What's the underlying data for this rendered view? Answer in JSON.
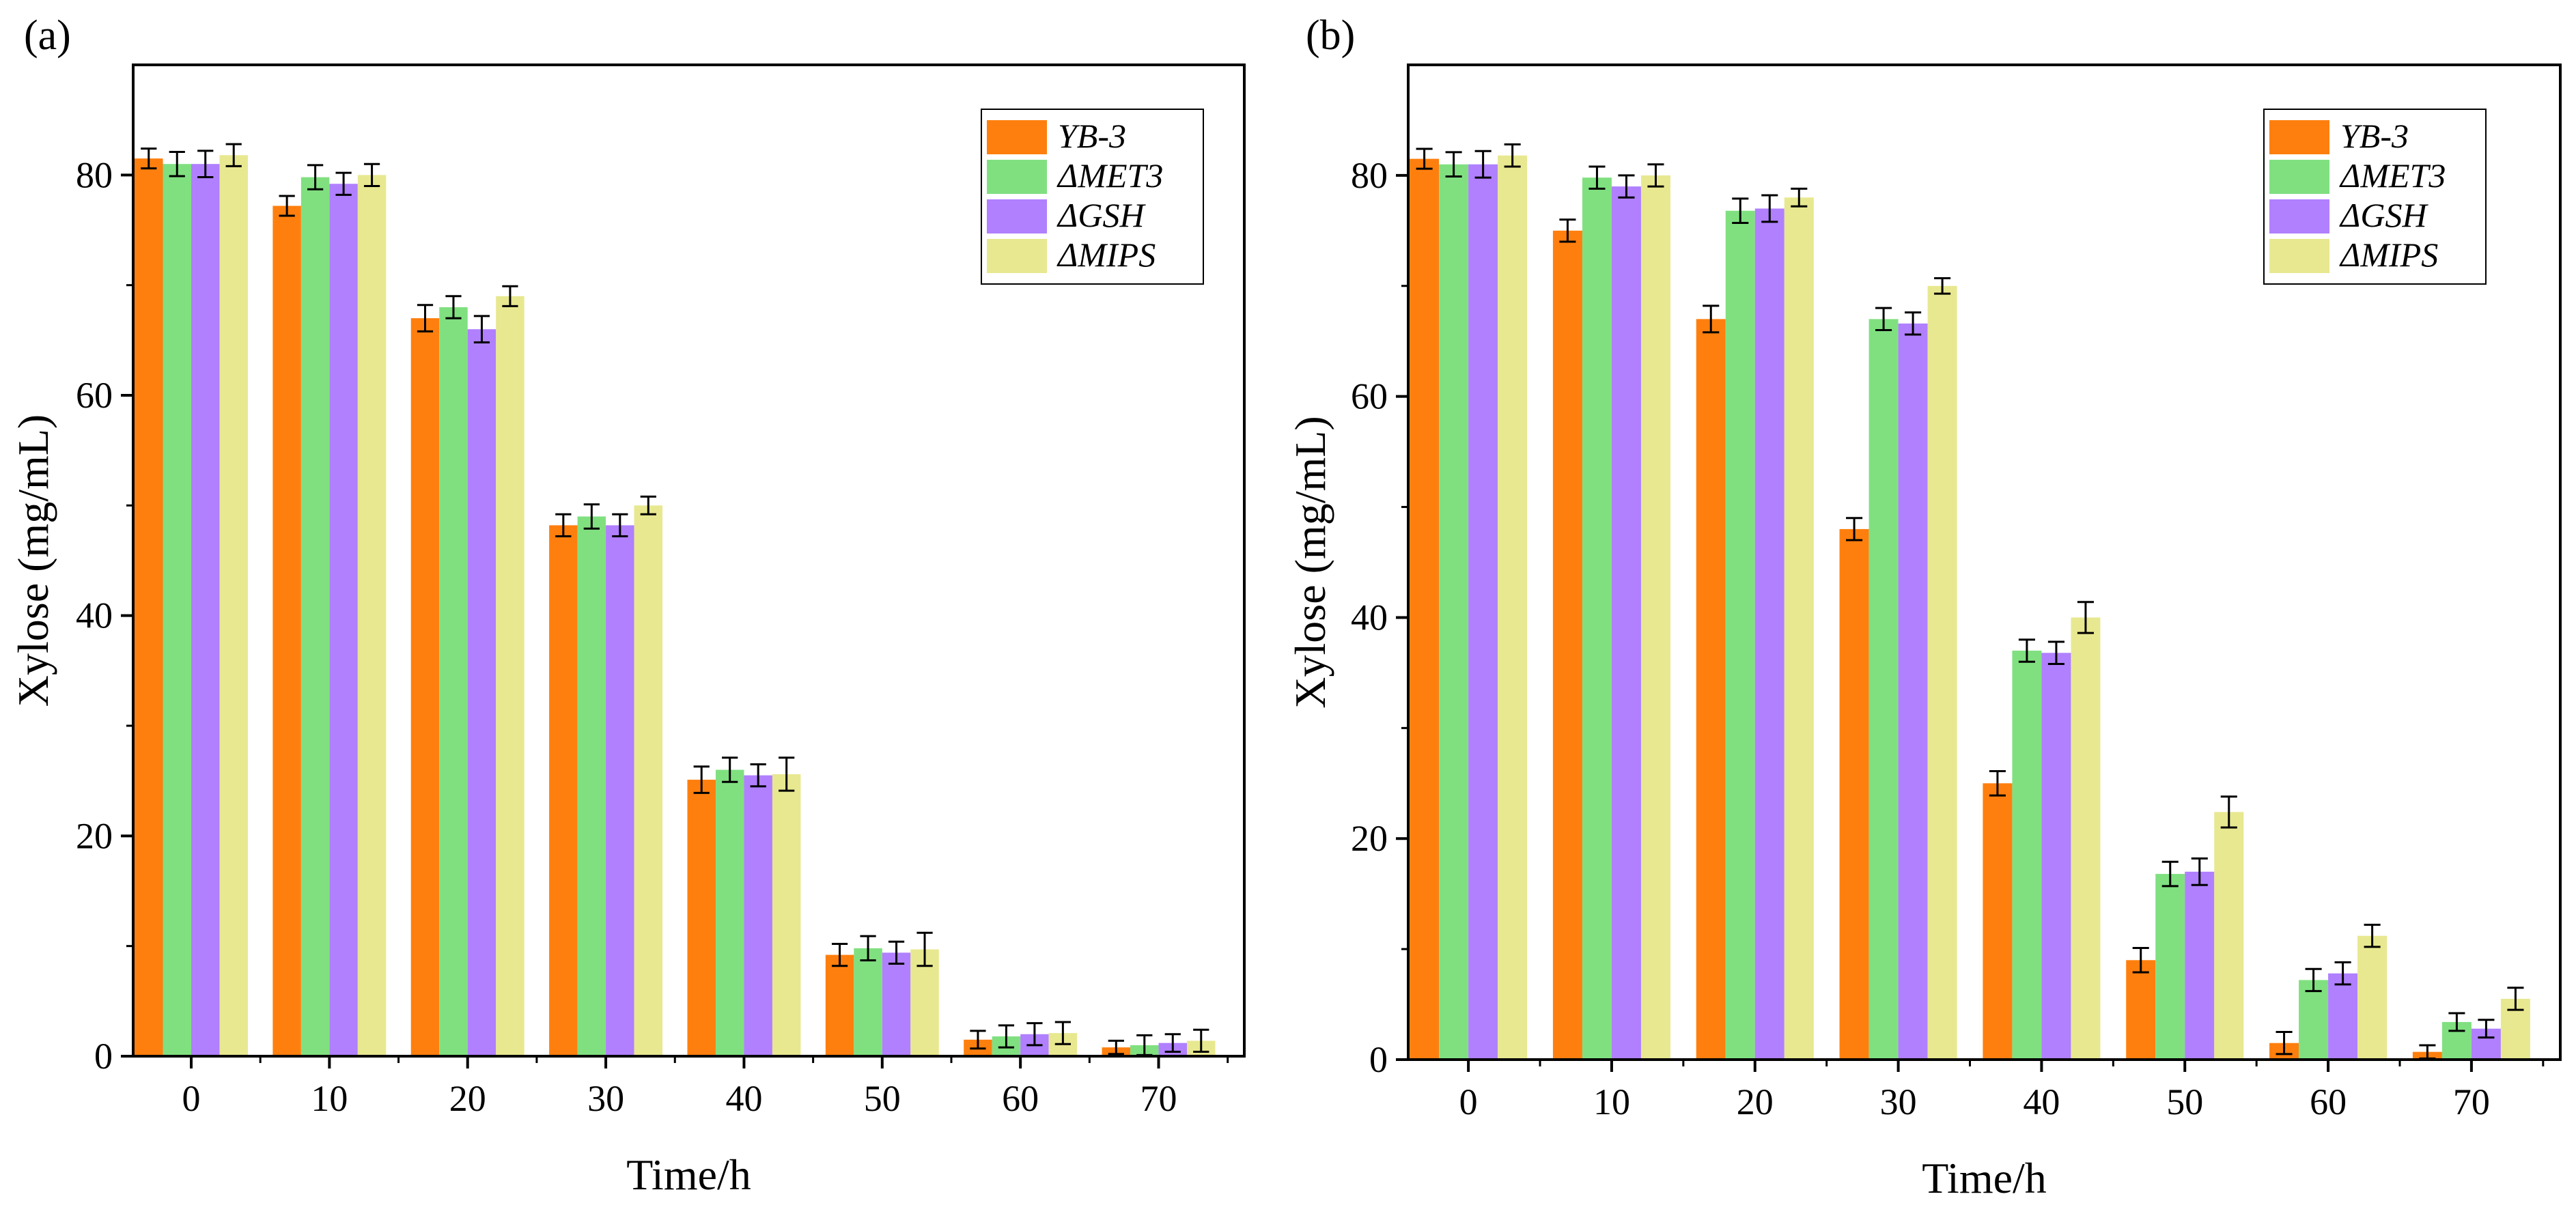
{
  "chart_data": [
    {
      "type": "bar",
      "panel_label": "(a)",
      "xlabel": "Time/h",
      "ylabel": "Xylose (mg/mL)",
      "x": [
        0,
        10,
        20,
        30,
        40,
        50,
        60,
        70
      ],
      "yticks": [
        0,
        20,
        40,
        60,
        80
      ],
      "ylim": [
        0,
        90
      ],
      "legend_position": "top-right",
      "series": [
        {
          "name": "YB-3",
          "color": "#ff7f0e",
          "values": [
            81.5,
            77.2,
            67.0,
            48.2,
            25.1,
            9.2,
            1.5,
            0.8
          ],
          "errors": [
            0.9,
            0.9,
            1.2,
            1.0,
            1.2,
            1.0,
            0.8,
            0.6
          ]
        },
        {
          "name": "ΔMET3",
          "color": "#80e080",
          "values": [
            81.0,
            79.8,
            68.0,
            49.0,
            26.0,
            9.8,
            1.8,
            1.0
          ],
          "errors": [
            1.1,
            1.1,
            1.0,
            1.1,
            1.1,
            1.1,
            1.0,
            0.9
          ]
        },
        {
          "name": "ΔGSH",
          "color": "#b080ff",
          "values": [
            81.0,
            79.2,
            66.0,
            48.2,
            25.5,
            9.4,
            2.0,
            1.2
          ],
          "errors": [
            1.2,
            1.0,
            1.2,
            1.0,
            1.0,
            1.0,
            1.0,
            0.8
          ]
        },
        {
          "name": "ΔMIPS",
          "color": "#e8e890",
          "values": [
            81.8,
            80.0,
            69.0,
            50.0,
            25.6,
            9.7,
            2.1,
            1.4
          ],
          "errors": [
            1.0,
            1.0,
            0.9,
            0.8,
            1.5,
            1.5,
            1.0,
            1.0
          ]
        }
      ]
    },
    {
      "type": "bar",
      "panel_label": "(b)",
      "xlabel": "Time/h",
      "ylabel": "Xylose (mg/mL)",
      "x": [
        0,
        10,
        20,
        30,
        40,
        50,
        60,
        70
      ],
      "yticks": [
        0,
        20,
        40,
        60,
        80
      ],
      "ylim": [
        0,
        90
      ],
      "legend_position": "top-right",
      "series": [
        {
          "name": "YB-3",
          "color": "#ff7f0e",
          "values": [
            81.5,
            75.0,
            67.0,
            48.0,
            25.0,
            9.0,
            1.5,
            0.7
          ],
          "errors": [
            0.9,
            1.0,
            1.2,
            1.0,
            1.1,
            1.1,
            1.0,
            0.6
          ]
        },
        {
          "name": "ΔMET3",
          "color": "#80e080",
          "values": [
            81.0,
            79.8,
            76.8,
            67.0,
            37.0,
            16.8,
            7.2,
            3.4
          ],
          "errors": [
            1.1,
            1.0,
            1.1,
            1.0,
            1.0,
            1.1,
            1.0,
            0.8
          ]
        },
        {
          "name": "ΔGSH",
          "color": "#b080ff",
          "values": [
            81.0,
            79.0,
            77.0,
            66.6,
            36.8,
            17.0,
            7.8,
            2.8
          ],
          "errors": [
            1.2,
            1.0,
            1.2,
            1.0,
            1.0,
            1.2,
            1.0,
            0.8
          ]
        },
        {
          "name": "ΔMIPS",
          "color": "#e8e890",
          "values": [
            81.8,
            80.0,
            78.0,
            70.0,
            40.0,
            22.4,
            11.2,
            5.5
          ],
          "errors": [
            1.0,
            1.0,
            0.8,
            0.7,
            1.4,
            1.4,
            1.0,
            1.0
          ]
        }
      ]
    }
  ]
}
